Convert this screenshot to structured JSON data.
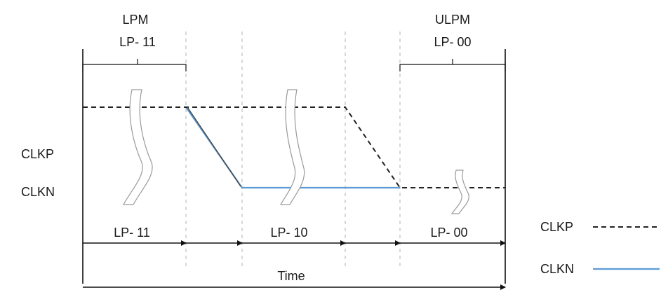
{
  "top_labels": {
    "lpm_mode": "LPM",
    "lpm_state": "LP- 11",
    "ulpm_mode": "ULPM",
    "ulpm_state": "LP- 00"
  },
  "signal_labels": {
    "clkp": "CLKP",
    "clkn": "CLKN"
  },
  "phase_labels": {
    "phase1": "LP- 11",
    "phase2": "LP- 10",
    "phase3": "LP- 00"
  },
  "time_label": "Time",
  "legend": {
    "clkp_label": "CLKP",
    "clkn_label": "CLKN"
  },
  "colors": {
    "clkp_line": "#222222",
    "clkn_line": "#5b9bd5",
    "guide": "#b0b0b0"
  }
}
